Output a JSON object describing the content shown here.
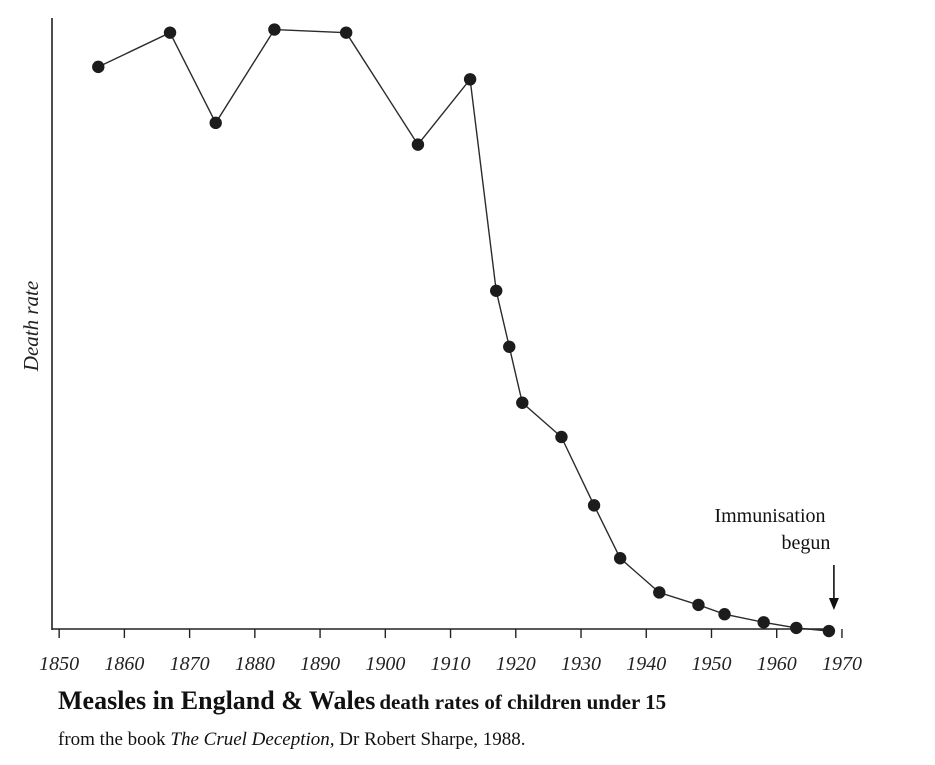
{
  "chart_data": {
    "type": "line",
    "title": "Measles in England & Wales",
    "subtitle": "death rates of children under 15",
    "source": {
      "prefix": "from the book ",
      "book": "The Cruel Deception,",
      "suffix": " Dr Robert Sharpe, 1988."
    },
    "xlabel": "",
    "ylabel": "Death rate",
    "xlim": [
      1844,
      1972
    ],
    "ylim": [
      0,
      100
    ],
    "xticks": [
      1850,
      1860,
      1870,
      1880,
      1890,
      1900,
      1910,
      1920,
      1930,
      1940,
      1950,
      1960,
      1970
    ],
    "grid": false,
    "series": [
      {
        "name": "Measles death rate",
        "x": [
          1856,
          1867,
          1874,
          1883,
          1894,
          1905,
          1913,
          1917,
          1919,
          1921,
          1927,
          1932,
          1936,
          1942,
          1948,
          1952,
          1958,
          1963,
          1968
        ],
        "y": [
          91.5,
          97,
          82.5,
          97.5,
          97,
          79,
          89.5,
          55.5,
          46.5,
          37.5,
          32,
          21,
          12.5,
          7,
          5,
          3.5,
          2.2,
          1.3,
          0.8
        ]
      }
    ],
    "annotations": [
      {
        "text_lines": [
          "Immunisation",
          "begun"
        ],
        "x": 1968
      }
    ]
  }
}
